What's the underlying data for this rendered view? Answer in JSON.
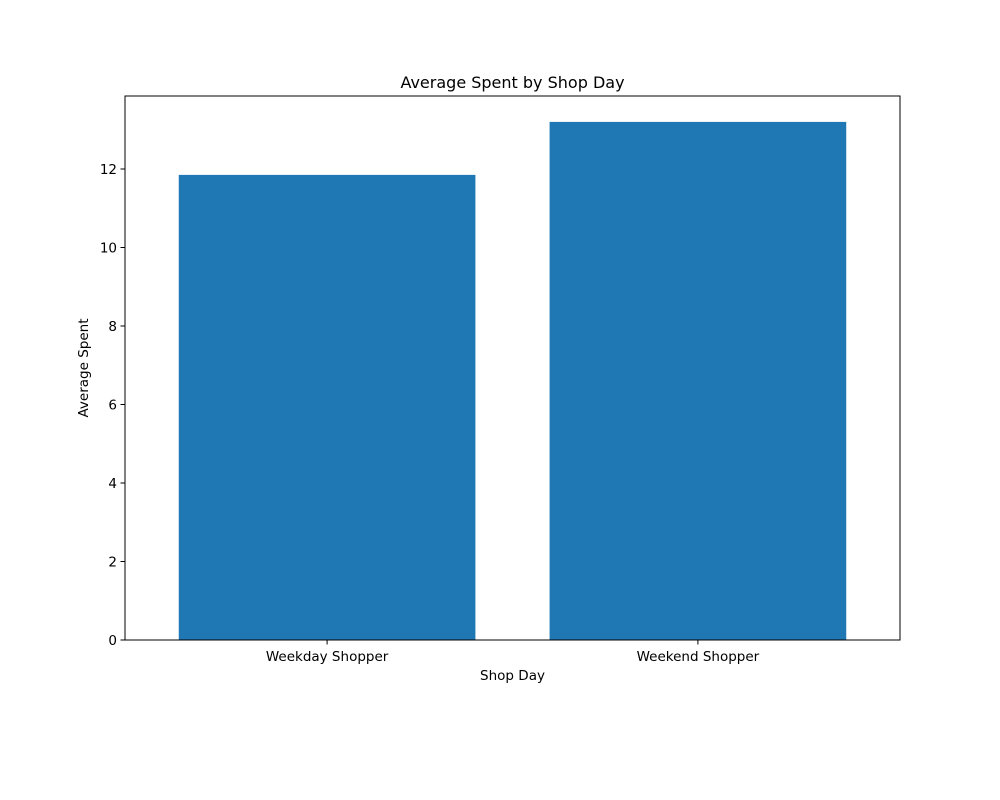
{
  "chart_data": {
    "type": "bar",
    "title": "Average Spent by Shop Day",
    "xlabel": "Shop Day",
    "ylabel": "Average Spent",
    "categories": [
      "Weekday Shopper",
      "Weekend Shopper"
    ],
    "values": [
      11.85,
      13.2
    ],
    "ylim": [
      0,
      13.86
    ],
    "yticks": [
      0,
      2,
      4,
      6,
      8,
      10,
      12
    ],
    "ytick_labels": [
      "0",
      "2",
      "4",
      "6",
      "8",
      "10",
      "12"
    ],
    "grid": false,
    "legend": "none",
    "bar_color": "#1f77b4"
  }
}
